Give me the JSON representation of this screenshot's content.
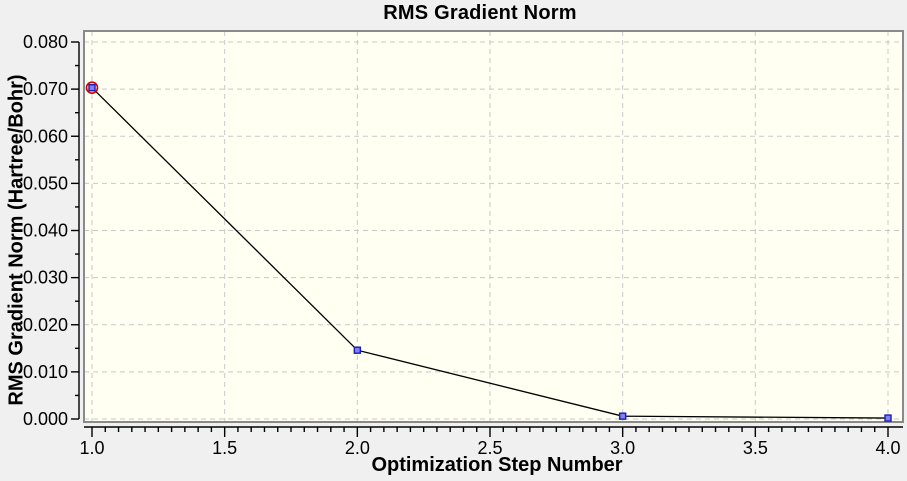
{
  "page": {
    "background": "#f0f0f0"
  },
  "chart_data": {
    "type": "line",
    "title": "RMS Gradient Norm",
    "xlabel": "Optimization Step Number",
    "ylabel": "RMS Gradient Norm (Hartree/Bohr)",
    "x": [
      1.0,
      2.0,
      3.0,
      4.0
    ],
    "y": [
      0.0703,
      0.0146,
      0.0006,
      0.0002
    ],
    "xlim": [
      1.0,
      4.0
    ],
    "ylim": [
      0.0,
      0.08
    ],
    "x_tick_values": [
      1.0,
      1.5,
      2.0,
      2.5,
      3.0,
      3.5,
      4.0
    ],
    "x_tick_labels": [
      "1.0",
      "1.5",
      "2.0",
      "2.5",
      "3.0",
      "3.5",
      "4.0"
    ],
    "y_tick_values": [
      0.0,
      0.01,
      0.02,
      0.03,
      0.04,
      0.05,
      0.06,
      0.07,
      0.08
    ],
    "y_tick_labels": [
      "0.000",
      "0.010",
      "0.020",
      "0.030",
      "0.040",
      "0.050",
      "0.060",
      "0.070",
      "0.080"
    ],
    "x_minor_step": 0.05,
    "y_minor_step": 0.005,
    "grid": "dashed",
    "legend": "none",
    "selected_point_index": 0,
    "colors": {
      "page_bg": "#f0f0f0",
      "plot_bg": "#fffff2",
      "plot_border": "#8a8a8a",
      "grid": "#c9c9c9",
      "axis": "#000000",
      "line": "#000000",
      "marker_fill": "#8080f0",
      "marker_stroke": "#1a1ab8",
      "selected_ring": "#d00000",
      "text": "#000000"
    }
  }
}
